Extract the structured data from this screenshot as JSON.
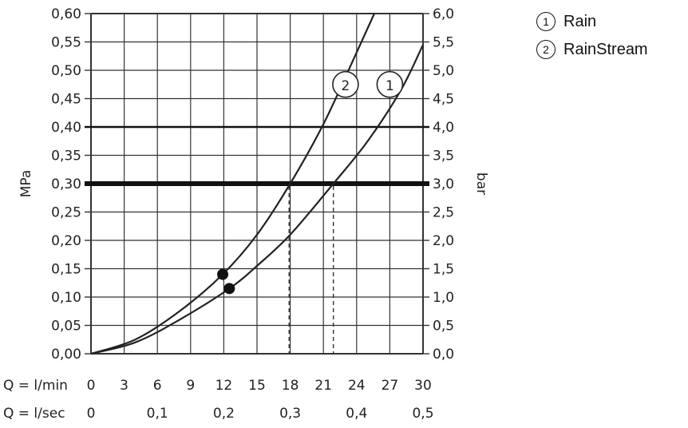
{
  "chart_data": {
    "type": "line",
    "x_label_lmin": "Q = l/min",
    "x_label_lsec": "Q = l/sec",
    "x_ticks_lmin": [
      "0",
      "3",
      "6",
      "9",
      "12",
      "15",
      "18",
      "21",
      "24",
      "27",
      "30"
    ],
    "x_ticks_lsec": [
      {
        "value": 0,
        "label": "0"
      },
      {
        "value": 6,
        "label": "0,1"
      },
      {
        "value": 12,
        "label": "0,2"
      },
      {
        "value": 18,
        "label": "0,3"
      },
      {
        "value": 24,
        "label": "0,4"
      },
      {
        "value": 30,
        "label": "0,5"
      }
    ],
    "y_left_label": "MPa",
    "y_right_label": "bar",
    "y_left_ticks": [
      "0,00",
      "0,05",
      "0,10",
      "0,15",
      "0,20",
      "0,25",
      "0,30",
      "0,35",
      "0,40",
      "0,45",
      "0,50",
      "0,55",
      "0,60"
    ],
    "y_right_ticks": [
      "0,0",
      "0,5",
      "1,0",
      "1,5",
      "2,0",
      "2,5",
      "3,0",
      "3,5",
      "4,0",
      "4,5",
      "5,0",
      "5,5",
      "6,0"
    ],
    "xlim": [
      0,
      30
    ],
    "ylim": [
      0,
      0.6
    ],
    "grid": true,
    "highlight_lines_mpa": [
      {
        "y": 0.3,
        "weight": "heavy"
      },
      {
        "y": 0.4,
        "weight": "medium"
      }
    ],
    "series": [
      {
        "marker": "1",
        "name": "Rain",
        "points": [
          [
            0,
            0
          ],
          [
            4,
            0.02
          ],
          [
            8,
            0.06
          ],
          [
            12.5,
            0.115
          ],
          [
            15,
            0.155
          ],
          [
            18,
            0.21
          ],
          [
            21.9,
            0.3
          ],
          [
            25,
            0.375
          ],
          [
            28,
            0.465
          ],
          [
            30,
            0.545
          ]
        ],
        "dot": [
          12.5,
          0.115
        ],
        "drop_x": 21.9,
        "tag_at": [
          27.0,
          0.475
        ]
      },
      {
        "marker": "2",
        "name": "RainStream",
        "points": [
          [
            0,
            0
          ],
          [
            4,
            0.025
          ],
          [
            8,
            0.075
          ],
          [
            11.9,
            0.14
          ],
          [
            15,
            0.21
          ],
          [
            18,
            0.3
          ],
          [
            21,
            0.405
          ],
          [
            23.5,
            0.51
          ],
          [
            25.6,
            0.6
          ]
        ],
        "dot": [
          11.9,
          0.14
        ],
        "drop_x": 17.9,
        "tag_at": [
          23.0,
          0.475
        ]
      }
    ]
  },
  "legend": [
    {
      "mark": "1",
      "label": "Rain"
    },
    {
      "mark": "2",
      "label": "RainStream"
    }
  ]
}
